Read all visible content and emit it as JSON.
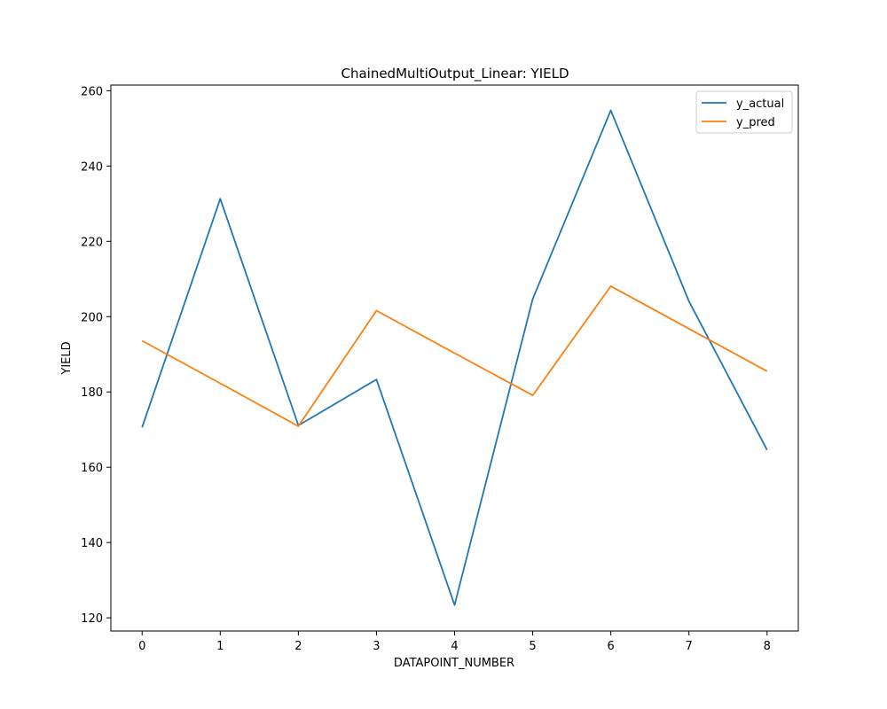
{
  "chart_data": {
    "type": "line",
    "title": "ChainedMultiOutput_Linear: YIELD",
    "xlabel": "DATAPOINT_NUMBER",
    "ylabel": "YIELD",
    "x": [
      0,
      1,
      2,
      3,
      4,
      5,
      6,
      7,
      8
    ],
    "xlim": [
      -0.4,
      8.4
    ],
    "ylim": [
      116.5,
      261.5
    ],
    "xticks": [
      0,
      1,
      2,
      3,
      4,
      5,
      6,
      7,
      8
    ],
    "yticks": [
      120,
      140,
      160,
      180,
      200,
      220,
      240,
      260
    ],
    "grid": false,
    "legend_position": "top-right",
    "series": [
      {
        "name": "y_actual",
        "color": "#1f77b4",
        "values": [
          170.6,
          231.3,
          171.1,
          183.3,
          123.4,
          204.7,
          254.8,
          204.1,
          164.6
        ]
      },
      {
        "name": "y_pred",
        "color": "#ff7f0e",
        "values": [
          193.6,
          182.3,
          170.9,
          201.6,
          190.3,
          179.1,
          208.1,
          196.8,
          185.5
        ]
      }
    ]
  }
}
